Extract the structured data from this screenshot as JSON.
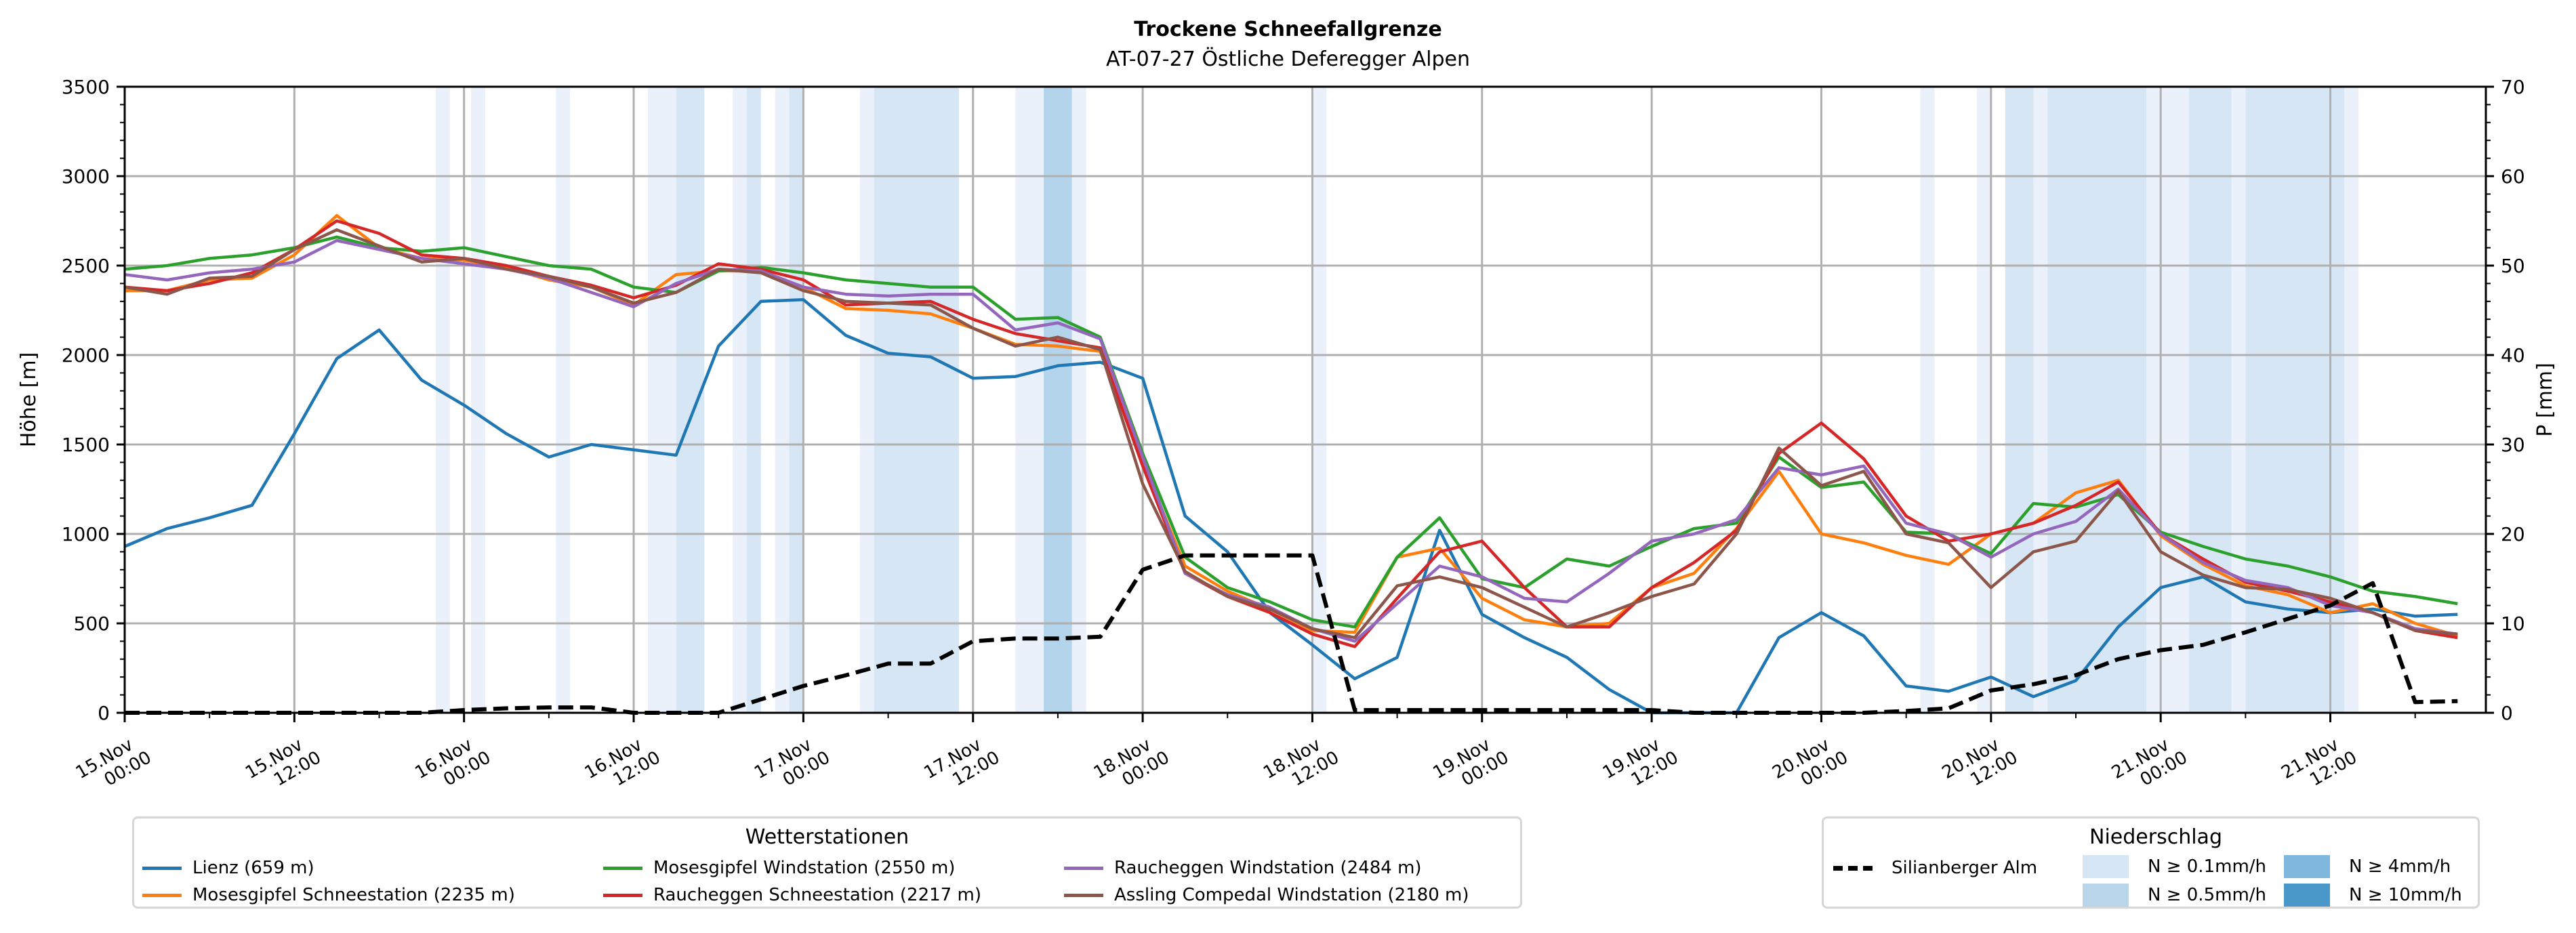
{
  "chart_data": {
    "type": "line",
    "title": "Trockene Schneefallgrenze",
    "subtitle": "AT-07-27 Östliche Deferegger Alpen",
    "ylabel": "Höhe [m]",
    "ylabel_right": "P [mm]",
    "ylim": [
      0,
      3500
    ],
    "ylim_right": [
      0,
      70
    ],
    "yticks": [
      0,
      500,
      1000,
      1500,
      2000,
      2500,
      3000,
      3500
    ],
    "yticks_right": [
      0,
      10,
      20,
      30,
      40,
      50,
      60,
      70
    ],
    "grid": true,
    "x_unit": "hours since 15.Nov 00:00",
    "xlim": [
      0,
      167
    ],
    "xticks": [
      {
        "x": 0,
        "label": [
          "15.Nov",
          "00:00"
        ]
      },
      {
        "x": 12,
        "label": [
          "15.Nov",
          "12:00"
        ]
      },
      {
        "x": 24,
        "label": [
          "16.Nov",
          "00:00"
        ]
      },
      {
        "x": 36,
        "label": [
          "16.Nov",
          "12:00"
        ]
      },
      {
        "x": 48,
        "label": [
          "17.Nov",
          "00:00"
        ]
      },
      {
        "x": 60,
        "label": [
          "17.Nov",
          "12:00"
        ]
      },
      {
        "x": 72,
        "label": [
          "18.Nov",
          "00:00"
        ]
      },
      {
        "x": 84,
        "label": [
          "18.Nov",
          "12:00"
        ]
      },
      {
        "x": 96,
        "label": [
          "19.Nov",
          "00:00"
        ]
      },
      {
        "x": 108,
        "label": [
          "19.Nov",
          "12:00"
        ]
      },
      {
        "x": 120,
        "label": [
          "20.Nov",
          "00:00"
        ]
      },
      {
        "x": 132,
        "label": [
          "20.Nov",
          "12:00"
        ]
      },
      {
        "x": 144,
        "label": [
          "21.Nov",
          "00:00"
        ]
      },
      {
        "x": 156,
        "label": [
          "21.Nov",
          "12:00"
        ]
      }
    ],
    "x": [
      0,
      3,
      6,
      9,
      12,
      15,
      18,
      21,
      24,
      27,
      30,
      33,
      36,
      39,
      42,
      45,
      48,
      51,
      54,
      57,
      60,
      63,
      66,
      69,
      72,
      75,
      78,
      81,
      84,
      87,
      90,
      93,
      96,
      99,
      102,
      105,
      108,
      111,
      114,
      117,
      120,
      123,
      126,
      129,
      132,
      135,
      138,
      141,
      144,
      147,
      150,
      153,
      156,
      159,
      162,
      165
    ],
    "series": [
      {
        "name": "Lienz (659 m)",
        "color": "#1f77b4",
        "axis": "left",
        "values": [
          930,
          1030,
          1090,
          1160,
          1560,
          1980,
          2140,
          1860,
          1720,
          1560,
          1430,
          1500,
          1470,
          1440,
          2050,
          2300,
          2310,
          2110,
          2010,
          1990,
          1870,
          1880,
          1940,
          1960,
          1870,
          1100,
          900,
          560,
          380,
          190,
          310,
          1020,
          550,
          420,
          310,
          130,
          0,
          0,
          0,
          420,
          560,
          430,
          150,
          120,
          200,
          90,
          180,
          480,
          700,
          760,
          620,
          580,
          560,
          580,
          540,
          550
        ]
      },
      {
        "name": "Mosesgipfel Schneestation (2235 m)",
        "color": "#ff7f0e",
        "axis": "left",
        "values": [
          2360,
          2360,
          2420,
          2430,
          2560,
          2780,
          2600,
          2540,
          2530,
          2490,
          2420,
          2380,
          2280,
          2450,
          2470,
          2470,
          2380,
          2260,
          2250,
          2230,
          2150,
          2060,
          2050,
          2020,
          1400,
          820,
          680,
          580,
          460,
          450,
          870,
          920,
          640,
          520,
          480,
          500,
          700,
          780,
          1030,
          1350,
          1000,
          950,
          880,
          830,
          1000,
          1060,
          1230,
          1300,
          990,
          830,
          710,
          660,
          560,
          610,
          500,
          430
        ]
      },
      {
        "name": "Mosesgipfel Windstation (2550 m)",
        "color": "#2ca02c",
        "axis": "left",
        "values": [
          2480,
          2500,
          2540,
          2560,
          2600,
          2660,
          2600,
          2580,
          2600,
          2550,
          2500,
          2480,
          2380,
          2350,
          2470,
          2490,
          2460,
          2420,
          2400,
          2380,
          2380,
          2200,
          2210,
          2100,
          1450,
          870,
          700,
          620,
          520,
          480,
          870,
          1090,
          750,
          700,
          860,
          820,
          930,
          1030,
          1060,
          1430,
          1260,
          1290,
          1010,
          1000,
          890,
          1170,
          1150,
          1220,
          1010,
          930,
          860,
          820,
          760,
          680,
          650,
          610
        ]
      },
      {
        "name": "Raucheggen Schneestation (2217 m)",
        "color": "#d62728",
        "axis": "left",
        "values": [
          2380,
          2360,
          2400,
          2460,
          2590,
          2750,
          2680,
          2560,
          2540,
          2500,
          2440,
          2390,
          2320,
          2390,
          2510,
          2480,
          2420,
          2280,
          2290,
          2300,
          2200,
          2120,
          2080,
          2040,
          1380,
          780,
          650,
          560,
          440,
          370,
          640,
          900,
          960,
          700,
          480,
          480,
          700,
          840,
          1020,
          1450,
          1620,
          1420,
          1100,
          960,
          1000,
          1060,
          1160,
          1290,
          1000,
          860,
          730,
          680,
          620,
          560,
          460,
          420
        ]
      },
      {
        "name": "Raucheggen Windstation (2484 m)",
        "color": "#9467bd",
        "axis": "left",
        "values": [
          2450,
          2420,
          2460,
          2480,
          2520,
          2640,
          2590,
          2540,
          2510,
          2480,
          2430,
          2350,
          2270,
          2400,
          2480,
          2470,
          2380,
          2340,
          2330,
          2340,
          2340,
          2140,
          2180,
          2090,
          1430,
          780,
          660,
          590,
          470,
          400,
          610,
          820,
          760,
          640,
          620,
          780,
          960,
          1000,
          1080,
          1370,
          1330,
          1380,
          1060,
          1000,
          870,
          1000,
          1070,
          1250,
          1000,
          840,
          740,
          700,
          600,
          560,
          470,
          440
        ]
      },
      {
        "name": "Assling Compedal Windstation (2180 m)",
        "color": "#8c564b",
        "axis": "left",
        "values": [
          2380,
          2340,
          2430,
          2440,
          2590,
          2700,
          2610,
          2520,
          2540,
          2480,
          2440,
          2380,
          2290,
          2350,
          2480,
          2460,
          2360,
          2300,
          2290,
          2280,
          2150,
          2050,
          2100,
          2030,
          1280,
          790,
          650,
          580,
          470,
          420,
          710,
          760,
          700,
          590,
          480,
          560,
          650,
          720,
          1000,
          1480,
          1270,
          1350,
          1000,
          950,
          700,
          900,
          960,
          1240,
          900,
          770,
          700,
          690,
          640,
          560,
          460,
          440
        ]
      },
      {
        "name": "Silianberger Alm",
        "color": "#000000",
        "axis": "right",
        "dashed": true,
        "values": [
          0,
          0,
          0,
          0,
          0,
          0,
          0,
          0,
          0.3,
          0.5,
          0.6,
          0.6,
          0,
          0,
          0,
          1.5,
          3,
          4.2,
          5.5,
          5.5,
          8,
          8.3,
          8.3,
          8.5,
          16,
          17.6,
          17.6,
          17.6,
          17.6,
          0.3,
          0.3,
          0.3,
          0.3,
          0.3,
          0.3,
          0.3,
          0.3,
          0,
          0,
          0,
          0,
          0,
          0.2,
          0.5,
          2.5,
          3.2,
          4.2,
          6,
          7,
          7.6,
          9,
          10.5,
          12,
          14.5,
          1.2,
          1.3
        ]
      }
    ],
    "precipitation_bands": {
      "levels": [
        {
          "label": "N ≥ 0.1mm/h",
          "color": "#eaf1fa"
        },
        {
          "label": "N ≥ 0.5mm/h",
          "color": "#d6e6f4"
        },
        {
          "label": "N ≥ 4mm/h",
          "color": "#b3d4ea"
        },
        {
          "label": "N ≥ 10mm/h",
          "color": "#6aaed6"
        }
      ],
      "intervals": [
        {
          "from": 22,
          "to": 23,
          "level": 0
        },
        {
          "from": 24.5,
          "to": 25.5,
          "level": 0
        },
        {
          "from": 30.5,
          "to": 31.5,
          "level": 0
        },
        {
          "from": 37,
          "to": 39,
          "level": 0
        },
        {
          "from": 39,
          "to": 41,
          "level": 1
        },
        {
          "from": 43,
          "to": 44,
          "level": 0
        },
        {
          "from": 44,
          "to": 45,
          "level": 1
        },
        {
          "from": 46,
          "to": 47,
          "level": 0
        },
        {
          "from": 47,
          "to": 48,
          "level": 1
        },
        {
          "from": 52,
          "to": 53,
          "level": 0
        },
        {
          "from": 53,
          "to": 59,
          "level": 1
        },
        {
          "from": 63,
          "to": 65,
          "level": 0
        },
        {
          "from": 65,
          "to": 67,
          "level": 2
        },
        {
          "from": 67,
          "to": 68,
          "level": 0
        },
        {
          "from": 84,
          "to": 85,
          "level": 0
        },
        {
          "from": 127,
          "to": 128,
          "level": 0
        },
        {
          "from": 131,
          "to": 132,
          "level": 0
        },
        {
          "from": 133,
          "to": 135,
          "level": 1
        },
        {
          "from": 135,
          "to": 136,
          "level": 0
        },
        {
          "from": 136,
          "to": 143,
          "level": 1
        },
        {
          "from": 143,
          "to": 146,
          "level": 0
        },
        {
          "from": 146,
          "to": 149,
          "level": 1
        },
        {
          "from": 149,
          "to": 150,
          "level": 0
        },
        {
          "from": 150,
          "to": 157,
          "level": 1
        },
        {
          "from": 157,
          "to": 158,
          "level": 0
        }
      ]
    },
    "legends": {
      "stations_title": "Wetterstationen",
      "precip_title": "Niederschlag",
      "placement_stations": "bottom-left",
      "placement_precip": "bottom-right"
    }
  }
}
